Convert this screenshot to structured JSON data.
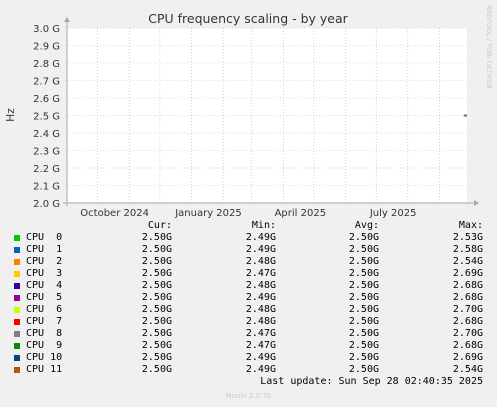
{
  "chart_data": {
    "type": "line",
    "title": "CPU frequency scaling - by year",
    "ylabel": "Hz",
    "side_label": "RRDTOOL / TOBI OETIKER",
    "ylim": [
      2.0,
      3.0
    ],
    "y_ticks": [
      {
        "value": 3.0,
        "label": "3.0 G"
      },
      {
        "value": 2.9,
        "label": "2.9 G"
      },
      {
        "value": 2.8,
        "label": "2.8 G"
      },
      {
        "value": 2.7,
        "label": "2.7 G"
      },
      {
        "value": 2.6,
        "label": "2.6 G"
      },
      {
        "value": 2.5,
        "label": "2.5 G"
      },
      {
        "value": 2.4,
        "label": "2.4 G"
      },
      {
        "value": 2.3,
        "label": "2.3 G"
      },
      {
        "value": 2.2,
        "label": "2.2 G"
      },
      {
        "value": 2.1,
        "label": "2.1 G"
      },
      {
        "value": 2.0,
        "label": "2.0 G"
      }
    ],
    "x_range": [
      "2024-09-01",
      "2025-09-28"
    ],
    "x_ticks": [
      {
        "date": "2024-10-01",
        "label": "October 2024"
      },
      {
        "date": "2025-01-01",
        "label": "January 2025"
      },
      {
        "date": "2025-04-01",
        "label": "April 2025"
      },
      {
        "date": "2025-07-01",
        "label": "July 2025"
      }
    ],
    "x_minor_dates": [
      "2024-09-01",
      "2024-10-01",
      "2024-11-01",
      "2024-12-01",
      "2025-01-01",
      "2025-02-01",
      "2025-03-01",
      "2025-04-01",
      "2025-05-01",
      "2025-06-01",
      "2025-07-01",
      "2025-08-01",
      "2025-09-01"
    ],
    "data_segment": {
      "from": "2025-09-25",
      "to": "2025-09-28",
      "value": 2.5
    },
    "grid": true,
    "legend_columns": [
      "Cur:",
      "Min:",
      "Avg:",
      "Max:"
    ],
    "series": [
      {
        "name": "CPU  0",
        "color": "#00cc00",
        "cur": "2.50G",
        "min": "2.49G",
        "avg": "2.50G",
        "max": "2.53G"
      },
      {
        "name": "CPU  1",
        "color": "#0066b3",
        "cur": "2.50G",
        "min": "2.49G",
        "avg": "2.50G",
        "max": "2.58G"
      },
      {
        "name": "CPU  2",
        "color": "#ff8000",
        "cur": "2.50G",
        "min": "2.48G",
        "avg": "2.50G",
        "max": "2.54G"
      },
      {
        "name": "CPU  3",
        "color": "#ffcc00",
        "cur": "2.50G",
        "min": "2.47G",
        "avg": "2.50G",
        "max": "2.69G"
      },
      {
        "name": "CPU  4",
        "color": "#330099",
        "cur": "2.50G",
        "min": "2.48G",
        "avg": "2.50G",
        "max": "2.68G"
      },
      {
        "name": "CPU  5",
        "color": "#990099",
        "cur": "2.50G",
        "min": "2.49G",
        "avg": "2.50G",
        "max": "2.68G"
      },
      {
        "name": "CPU  6",
        "color": "#ccff00",
        "cur": "2.50G",
        "min": "2.48G",
        "avg": "2.50G",
        "max": "2.70G"
      },
      {
        "name": "CPU  7",
        "color": "#ff0000",
        "cur": "2.50G",
        "min": "2.48G",
        "avg": "2.50G",
        "max": "2.68G"
      },
      {
        "name": "CPU  8",
        "color": "#808080",
        "cur": "2.50G",
        "min": "2.47G",
        "avg": "2.50G",
        "max": "2.70G"
      },
      {
        "name": "CPU  9",
        "color": "#008f00",
        "cur": "2.50G",
        "min": "2.47G",
        "avg": "2.50G",
        "max": "2.68G"
      },
      {
        "name": "CPU 10",
        "color": "#00487d",
        "cur": "2.50G",
        "min": "2.49G",
        "avg": "2.50G",
        "max": "2.69G"
      },
      {
        "name": "CPU 11",
        "color": "#b35a00",
        "cur": "2.50G",
        "min": "2.49G",
        "avg": "2.50G",
        "max": "2.54G"
      }
    ]
  },
  "last_update": "Last update: Sun Sep 28 02:40:35 2025",
  "footer": "Munin 2.0.76"
}
